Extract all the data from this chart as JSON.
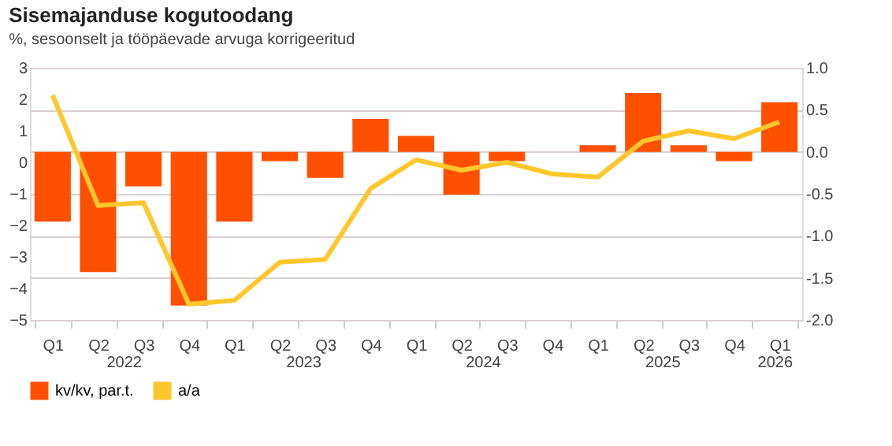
{
  "chart_data": {
    "type": "bar",
    "title": "Sisemajanduse kogutoodang",
    "subtitle": "%, sesoonselt ja tööpäevade arvuga korrigeeritud",
    "categories": [
      "Q1",
      "Q2",
      "Q3",
      "Q4",
      "Q1",
      "Q2",
      "Q3",
      "Q4",
      "Q1",
      "Q2",
      "Q3",
      "Q4",
      "Q1",
      "Q2",
      "Q3",
      "Q4",
      "Q1"
    ],
    "series": [
      {
        "name": "kv/kv, par.t.",
        "axis": "y2",
        "color": "#ff5000",
        "values": [
          -0.83,
          -1.43,
          -0.41,
          -1.83,
          -0.83,
          -0.11,
          -0.31,
          0.39,
          0.19,
          -0.51,
          -0.11,
          0,
          0.08,
          0.7,
          0.08,
          -0.11,
          0.59
        ]
      },
      {
        "name": "a/a",
        "type": "line",
        "color": "#ffc72c",
        "values": [
          2.13,
          -1.37,
          -1.28,
          -4.5,
          -4.38,
          -3.17,
          -3.08,
          -0.83,
          0.08,
          -0.25,
          0,
          -0.37,
          -0.47,
          0.67,
          1.0,
          0.75,
          1.28
        ]
      }
    ],
    "ylim": [
      -5,
      3
    ],
    "yticks": [
      -5,
      -4,
      -3,
      -2,
      -1,
      0,
      1,
      2,
      3
    ],
    "y2lim": [
      -2,
      1
    ],
    "y2ticks": [
      {
        "value": -2,
        "label": "-2.0"
      },
      {
        "value": -1.5,
        "label": "-1.5"
      },
      {
        "value": -1,
        "label": "-1.0"
      },
      {
        "value": -0.5,
        "label": "-0.5"
      },
      {
        "value": 0,
        "label": "0.0"
      },
      {
        "value": 0.5,
        "label": "0.5"
      },
      {
        "value": 1,
        "label": "1.0"
      }
    ],
    "annotations": [
      "2022",
      "2023",
      "2024",
      "2025",
      "2026"
    ],
    "grid": "y",
    "legend": "bottom",
    "line_style": "solid",
    "marker": "none"
  }
}
